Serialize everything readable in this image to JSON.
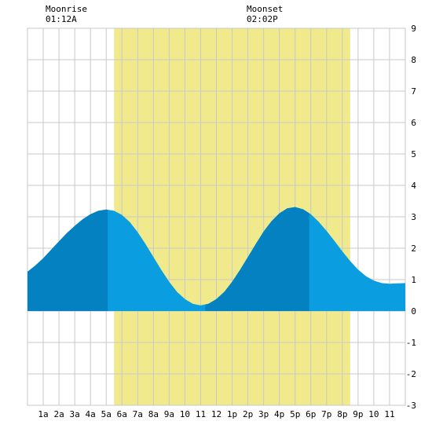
{
  "moon": {
    "moonrise_label": "Moonrise",
    "moonrise_time": "01:12A",
    "moonset_label": "Moonset",
    "moonset_time": "02:02P"
  },
  "chart_data": {
    "type": "area",
    "title": "",
    "xlabel": "",
    "ylabel": "",
    "xlim": [
      0,
      24
    ],
    "ylim": [
      -3,
      9
    ],
    "grid": true,
    "x_tick_labels": [
      "1a",
      "2a",
      "3a",
      "4a",
      "5a",
      "6a",
      "7a",
      "8a",
      "9a",
      "10",
      "11",
      "12",
      "1p",
      "2p",
      "3p",
      "4p",
      "5p",
      "6p",
      "7p",
      "8p",
      "9p",
      "10",
      "11"
    ],
    "y_tick_labels": [
      "-3",
      "-2",
      "-1",
      "0",
      "1",
      "2",
      "3",
      "4",
      "5",
      "6",
      "7",
      "8",
      "9"
    ],
    "daylight_window": {
      "start_hour": 5.5,
      "end_hour": 20.5,
      "color": "#f0ea8c"
    },
    "colors": {
      "tide_light": "#0a9ee0",
      "tide_dark": "#0381c0",
      "grid": "#c8c8c8",
      "background": "#ffffff"
    },
    "series": [
      {
        "x": [
          0,
          0.5,
          1,
          1.5,
          2,
          2.5,
          3,
          3.5,
          4,
          4.5,
          5,
          5.5,
          6,
          6.5,
          7,
          7.5,
          8,
          8.5,
          9,
          9.5,
          10,
          10.5,
          11,
          11.5,
          12,
          12.5,
          13,
          13.5,
          14,
          14.5,
          15,
          15.5,
          16,
          16.5,
          17,
          17.5,
          18,
          18.5,
          19,
          19.5,
          20,
          20.5,
          21,
          21.5,
          22,
          22.5,
          23,
          23.5,
          24
        ],
        "y": [
          1.25,
          1.45,
          1.68,
          1.95,
          2.22,
          2.48,
          2.71,
          2.92,
          3.08,
          3.19,
          3.23,
          3.19,
          3.06,
          2.83,
          2.51,
          2.13,
          1.72,
          1.31,
          0.93,
          0.61,
          0.38,
          0.23,
          0.18,
          0.23,
          0.38,
          0.61,
          0.93,
          1.31,
          1.72,
          2.13,
          2.53,
          2.86,
          3.11,
          3.27,
          3.31,
          3.24,
          3.08,
          2.84,
          2.55,
          2.23,
          1.9,
          1.59,
          1.32,
          1.11,
          0.97,
          0.89,
          0.87,
          0.88,
          0.89
        ]
      }
    ],
    "dark_bands": [
      {
        "from_hour": 0,
        "to_hour": 5.1
      },
      {
        "from_hour": 11.3,
        "to_hour": 17.9
      }
    ]
  }
}
